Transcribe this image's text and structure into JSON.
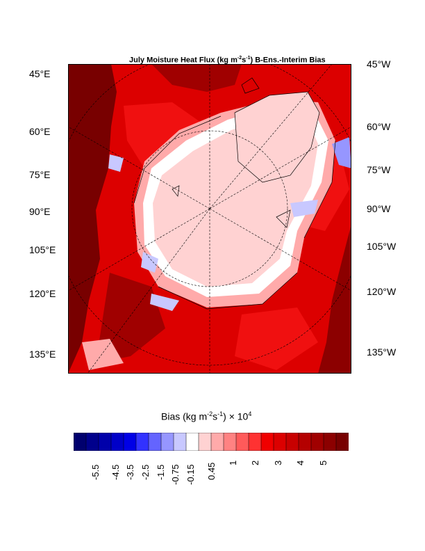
{
  "title": {
    "prefix": "July Moisture Heat Flux (kg m",
    "sup1": "-2",
    "mid": "s",
    "sup2": "-1",
    "suffix": ") B-Ens.-Interim Bias"
  },
  "lat_labels_left": [
    "45°E",
    "60°E",
    "75°E",
    "90°E",
    "105°E",
    "120°E",
    "135°E"
  ],
  "lat_labels_right": [
    "45°W",
    "60°W",
    "75°W",
    "90°W",
    "105°W",
    "120°W",
    "135°W"
  ],
  "colorbar": {
    "title_prefix": "Bias (kg m",
    "sup1": "-2",
    "mid": "s",
    "sup2": "-1",
    "suffix": ") × 10",
    "sup3": "4",
    "ticks": [
      "-5.5",
      "-4.5",
      "-3.5",
      "-2.5",
      "-1.5",
      "-0.75",
      "-0.15",
      "0.45",
      "1",
      "2",
      "3",
      "4",
      "5"
    ],
    "colors": [
      "#00006e",
      "#00008c",
      "#0000aa",
      "#0000c8",
      "#0000e6",
      "#3232ff",
      "#6464ff",
      "#9696ff",
      "#c8c8ff",
      "#ffffff",
      "#ffd2d2",
      "#ffaaaa",
      "#ff8282",
      "#ff5a5a",
      "#ff3232",
      "#f00000",
      "#dc0000",
      "#c80000",
      "#b40000",
      "#a00000",
      "#8c0000",
      "#780000"
    ]
  },
  "legend_colors": {
    "deep_red": "#780000",
    "dark_red": "#b40000",
    "red": "#dc0000",
    "bright_red": "#f51010",
    "pink": "#ffaaaa",
    "light_pink": "#ffd2d2",
    "white": "#ffffff",
    "light_blue": "#c8c8ff",
    "blue": "#6464ff"
  }
}
